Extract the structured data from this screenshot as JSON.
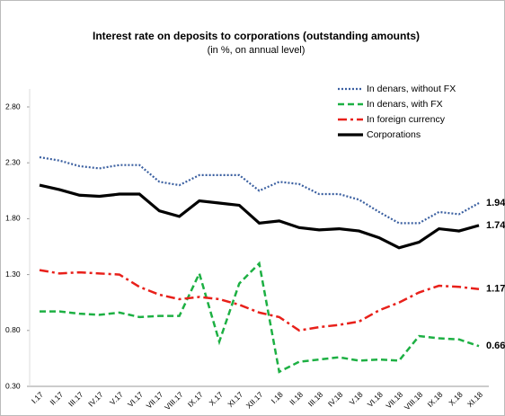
{
  "chart_data": {
    "type": "line",
    "title": "Interest rate on deposits to corporations (outstanding amounts)",
    "subtitle": "(in %, on annual level)",
    "categories": [
      "I.17",
      "II.17",
      "III.17",
      "IV.17",
      "V.17",
      "VI.17",
      "VII.17",
      "VIII.17",
      "IX.17",
      "X.17",
      "XI.17",
      "XII.17",
      "I.18",
      "II.18",
      "III.18",
      "IV.18",
      "V.18",
      "VI.18",
      "VII.18",
      "VIII.18",
      "IX.18",
      "X.18",
      "XI.18"
    ],
    "series": [
      {
        "name": "In denars, without FX",
        "color": "#3a5fa0",
        "dash": "dotted",
        "values": [
          2.35,
          2.32,
          2.27,
          2.25,
          2.28,
          2.28,
          2.13,
          2.1,
          2.19,
          2.19,
          2.19,
          2.05,
          2.13,
          2.11,
          2.02,
          2.02,
          1.97,
          1.86,
          1.76,
          1.76,
          1.86,
          1.84,
          1.94
        ]
      },
      {
        "name": "In denars, with FX",
        "color": "#1db043",
        "dash": "dashed",
        "values": [
          0.97,
          0.97,
          0.95,
          0.94,
          0.96,
          0.92,
          0.93,
          0.93,
          1.31,
          0.7,
          1.22,
          1.4,
          0.43,
          0.52,
          0.54,
          0.56,
          0.53,
          0.54,
          0.53,
          0.75,
          0.73,
          0.72,
          0.66
        ]
      },
      {
        "name": "In foreign currency",
        "color": "#e8201a",
        "dash": "dashdot",
        "values": [
          1.34,
          1.31,
          1.32,
          1.31,
          1.3,
          1.19,
          1.12,
          1.08,
          1.1,
          1.08,
          1.03,
          0.96,
          0.92,
          0.8,
          0.83,
          0.85,
          0.88,
          0.98,
          1.05,
          1.14,
          1.2,
          1.19,
          1.17
        ]
      },
      {
        "name": "Corporations",
        "color": "#000000",
        "dash": "solid",
        "values": [
          2.1,
          2.06,
          2.01,
          2.0,
          2.02,
          2.02,
          1.87,
          1.82,
          1.96,
          1.94,
          1.92,
          1.76,
          1.78,
          1.72,
          1.7,
          1.71,
          1.69,
          1.63,
          1.54,
          1.59,
          1.71,
          1.69,
          1.74
        ]
      }
    ],
    "ylim": [
      0.3,
      2.8
    ],
    "yticks": [
      {
        "value": 0.3,
        "label": "0.30"
      },
      {
        "value": 0.8,
        "label": "0.80"
      },
      {
        "value": 1.3,
        "label": "1.30"
      },
      {
        "value": 1.8,
        "label": "1.80"
      },
      {
        "value": 2.3,
        "label": "2.30"
      },
      {
        "value": 2.8,
        "label": "2.80"
      }
    ],
    "legend": "top-right"
  }
}
